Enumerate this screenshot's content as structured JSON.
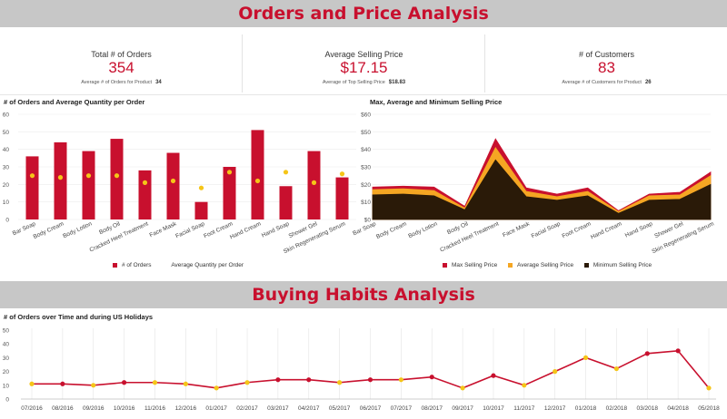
{
  "banners": {
    "top": "Orders and Price Analysis",
    "bottom": "Buying Habits Analysis"
  },
  "kpis": [
    {
      "label": "Total # of Orders",
      "value": "354",
      "sub_label": "Average # of Orders for Product",
      "sub_value": "34"
    },
    {
      "label": "Average Selling Price",
      "value": "$17.15",
      "sub_label": "Average of Top Selling Price",
      "sub_value": "$18.83"
    },
    {
      "label": "# of Customers",
      "value": "83",
      "sub_label": "Average # of Customers for Product",
      "sub_value": "26"
    }
  ],
  "colors": {
    "accent": "#c8102e",
    "avg": "#f5b51c",
    "min": "#2a1a08"
  },
  "chart_data": [
    {
      "type": "bar",
      "title": "# of Orders and Average Quantity per Order",
      "categories": [
        "Bar Soap",
        "Body Cream",
        "Body Lotion",
        "Body Oil",
        "Cracked Heel Treatment",
        "Face Mask",
        "Facial Soap",
        "Foot Cream",
        "Hand Cream",
        "Hand Soap",
        "Shower Gel",
        "Skin Regenerating Serum"
      ],
      "series": [
        {
          "name": "# of Orders",
          "values": [
            36,
            44,
            39,
            46,
            28,
            38,
            10,
            30,
            51,
            19,
            39,
            24
          ],
          "color": "#c8102e"
        },
        {
          "name": "Average Quantity per Order",
          "values": [
            25,
            24,
            25,
            25,
            21,
            22,
            18,
            27,
            22,
            27,
            21,
            26
          ],
          "color": "#f5c518"
        }
      ],
      "ylim": [
        0,
        60
      ],
      "yticks": [
        "0",
        "10",
        "20",
        "30",
        "40",
        "50",
        "60"
      ],
      "legend": "bottom"
    },
    {
      "type": "area",
      "title": "Max, Average and Minimum Selling Price",
      "categories": [
        "Bar Soap",
        "Body Cream",
        "Body Lotion",
        "Body Oil",
        "Cracked Heel Treatment",
        "Face Mask",
        "Facial Soap",
        "Foot Cream",
        "Hand Cream",
        "Hand Soap",
        "Shower Gel",
        "Skin Regenerating Serum"
      ],
      "series": [
        {
          "name": "Max Selling Price",
          "values": [
            18.5,
            19,
            18.5,
            7.5,
            46,
            18,
            14.5,
            18,
            5,
            14.5,
            15.5,
            27
          ],
          "color": "#c8102e"
        },
        {
          "name": "Average Selling Price",
          "values": [
            17,
            17.5,
            16.5,
            6.5,
            41,
            16,
            13,
            16,
            4.5,
            13.5,
            14,
            25
          ],
          "color": "#f5a623"
        },
        {
          "name": "Minimum Selling Price",
          "values": [
            14,
            14.5,
            13.5,
            5.5,
            34,
            13,
            11,
            13.5,
            3.5,
            11,
            11.5,
            20
          ],
          "color": "#2a1a08"
        }
      ],
      "ylim": [
        0,
        60
      ],
      "yticks": [
        "$0",
        "$10",
        "$20",
        "$30",
        "$40",
        "$50",
        "$60"
      ],
      "legend": "bottom"
    },
    {
      "type": "line",
      "title": "# of Orders over Time and during US Holidays",
      "x": [
        "07/2016",
        "08/2016",
        "09/2016",
        "10/2016",
        "11/2016",
        "12/2016",
        "01/2017",
        "02/2017",
        "03/2017",
        "04/2017",
        "05/2017",
        "06/2017",
        "07/2017",
        "08/2017",
        "09/2017",
        "10/2017",
        "11/2017",
        "12/2017",
        "01/2018",
        "02/2018",
        "03/2018",
        "04/2018",
        "05/2018"
      ],
      "series": [
        {
          "name": "# of Orders",
          "values": [
            11,
            11,
            10,
            12,
            12,
            11,
            8,
            12,
            14,
            14,
            12,
            14,
            14,
            16,
            8,
            17,
            10,
            20,
            30,
            22,
            33,
            35,
            8
          ]
        }
      ],
      "holiday_months": [
        "07/2016",
        "09/2016",
        "11/2016",
        "12/2016",
        "01/2017",
        "02/2017",
        "05/2017",
        "07/2017",
        "09/2017",
        "11/2017",
        "12/2017",
        "01/2018",
        "02/2018",
        "05/2018"
      ],
      "ylim": [
        0,
        50
      ],
      "yticks": [
        "0",
        "10",
        "20",
        "30",
        "40",
        "50"
      ]
    }
  ]
}
